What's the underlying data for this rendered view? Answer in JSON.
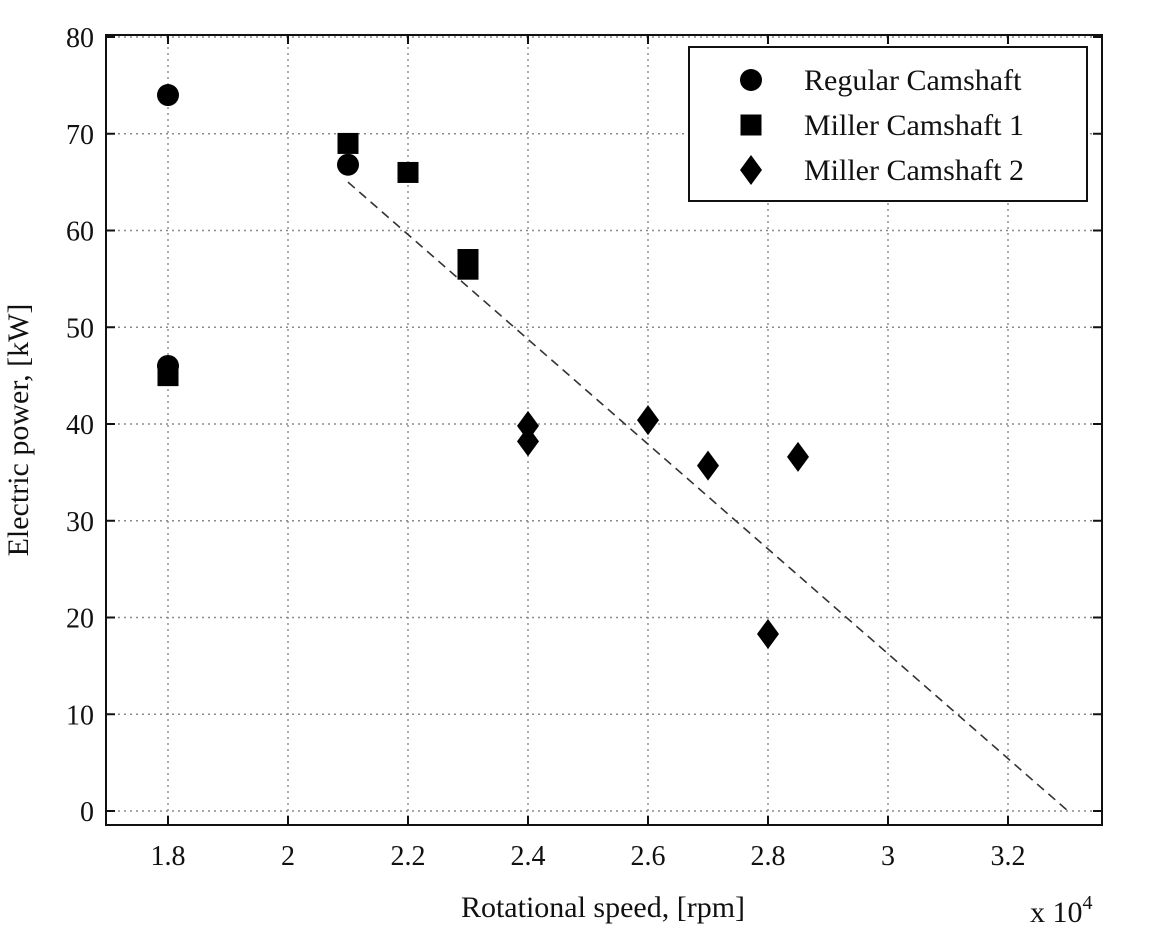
{
  "chart_data": {
    "type": "scatter",
    "title": "",
    "xlabel": "Rotational speed, [rpm]",
    "ylabel": "Electric power, [kW]",
    "x_scale_multiplier": "x 10",
    "x_scale_exponent": "4",
    "xlim": [
      1.7,
      3.35
    ],
    "ylim": [
      0,
      80
    ],
    "xticks": [
      1.8,
      2.0,
      2.2,
      2.4,
      2.6,
      2.8,
      3.0,
      3.2
    ],
    "xtick_labels": [
      "1.8",
      "2",
      "2.2",
      "2.4",
      "2.6",
      "2.8",
      "3",
      "3.2"
    ],
    "yticks": [
      0,
      10,
      20,
      30,
      40,
      50,
      60,
      70,
      80
    ],
    "ytick_labels": [
      "0",
      "10",
      "20",
      "30",
      "40",
      "50",
      "60",
      "70",
      "80"
    ],
    "grid": true,
    "legend_position": "top-right",
    "series": [
      {
        "name": "Regular Camshaft",
        "marker": "circle",
        "color": "#000000",
        "points": [
          [
            1.8,
            74.0
          ],
          [
            1.8,
            46.0
          ],
          [
            2.1,
            66.8
          ]
        ]
      },
      {
        "name": "Miller Camshaft 1",
        "marker": "square",
        "color": "#000000",
        "points": [
          [
            1.8,
            45.0
          ],
          [
            2.1,
            69.0
          ],
          [
            2.2,
            66.0
          ],
          [
            2.3,
            57.0
          ],
          [
            2.3,
            56.0
          ]
        ]
      },
      {
        "name": "Miller Camshaft 2",
        "marker": "diamond",
        "color": "#000000",
        "points": [
          [
            2.4,
            39.8
          ],
          [
            2.4,
            38.2
          ],
          [
            2.6,
            40.4
          ],
          [
            2.7,
            35.7
          ],
          [
            2.8,
            18.3
          ],
          [
            2.85,
            36.6
          ]
        ]
      }
    ],
    "trend_line": {
      "style": "dashed",
      "color": "#333333",
      "from": [
        2.1,
        65.0
      ],
      "to": [
        3.3,
        0.0
      ]
    }
  }
}
